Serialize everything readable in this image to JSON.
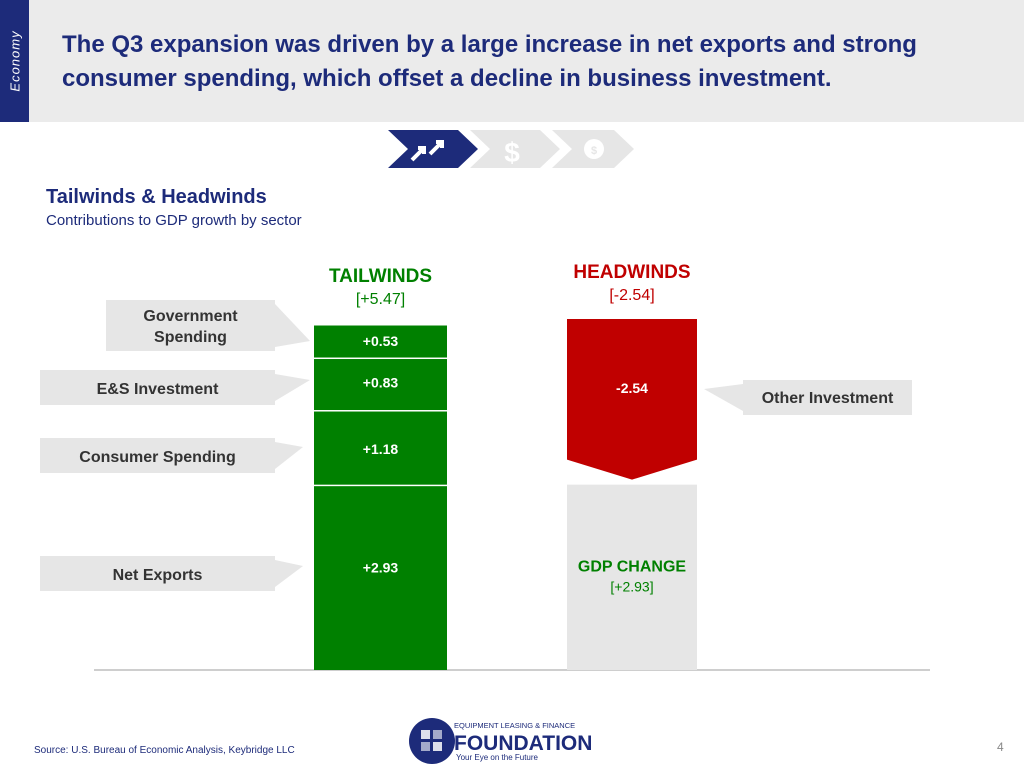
{
  "sidebar_label": "Economy",
  "title": "The Q3 expansion was driven by a large increase in net exports and strong consumer spending, which offset a decline in business investment.",
  "nav_icons": [
    "arrows-icon",
    "dollar-icon",
    "head-gear-icon"
  ],
  "section": {
    "title": "Tailwinds & Headwinds",
    "subtitle": "Contributions to GDP growth by sector"
  },
  "chart_data": {
    "type": "bar",
    "subtype": "waterfall",
    "columns": [
      {
        "title": "TAILWINDS",
        "total_label": "[+5.47]",
        "total": 5.47,
        "color": "#008000"
      },
      {
        "title": "HEADWINDS",
        "total_label": "[-2.54]",
        "total": -2.54,
        "color": "#c00000"
      }
    ],
    "tailwinds": [
      {
        "name": "Net Exports",
        "value": 2.93,
        "label": "+2.93"
      },
      {
        "name": "Consumer Spending",
        "value": 1.18,
        "label": "+1.18"
      },
      {
        "name": "E&S Investment",
        "value": 0.83,
        "label": "+0.83"
      },
      {
        "name": "Government Spending",
        "value": 0.53,
        "label": "+0.53"
      }
    ],
    "headwinds": [
      {
        "name": "Other Investment",
        "value": -2.54,
        "label": "-2.54"
      }
    ],
    "result": {
      "title": "GDP CHANGE",
      "value": 2.93,
      "label": "[+2.93]",
      "color": "#e6e6e6"
    }
  },
  "source": "Source:  U.S. Bureau of Economic Analysis, Keybridge LLC",
  "logo": {
    "top": "EQUIPMENT LEASING & FINANCE",
    "main": "FOUNDATION",
    "tagline": "Your Eye on the Future"
  },
  "page_number": "4"
}
